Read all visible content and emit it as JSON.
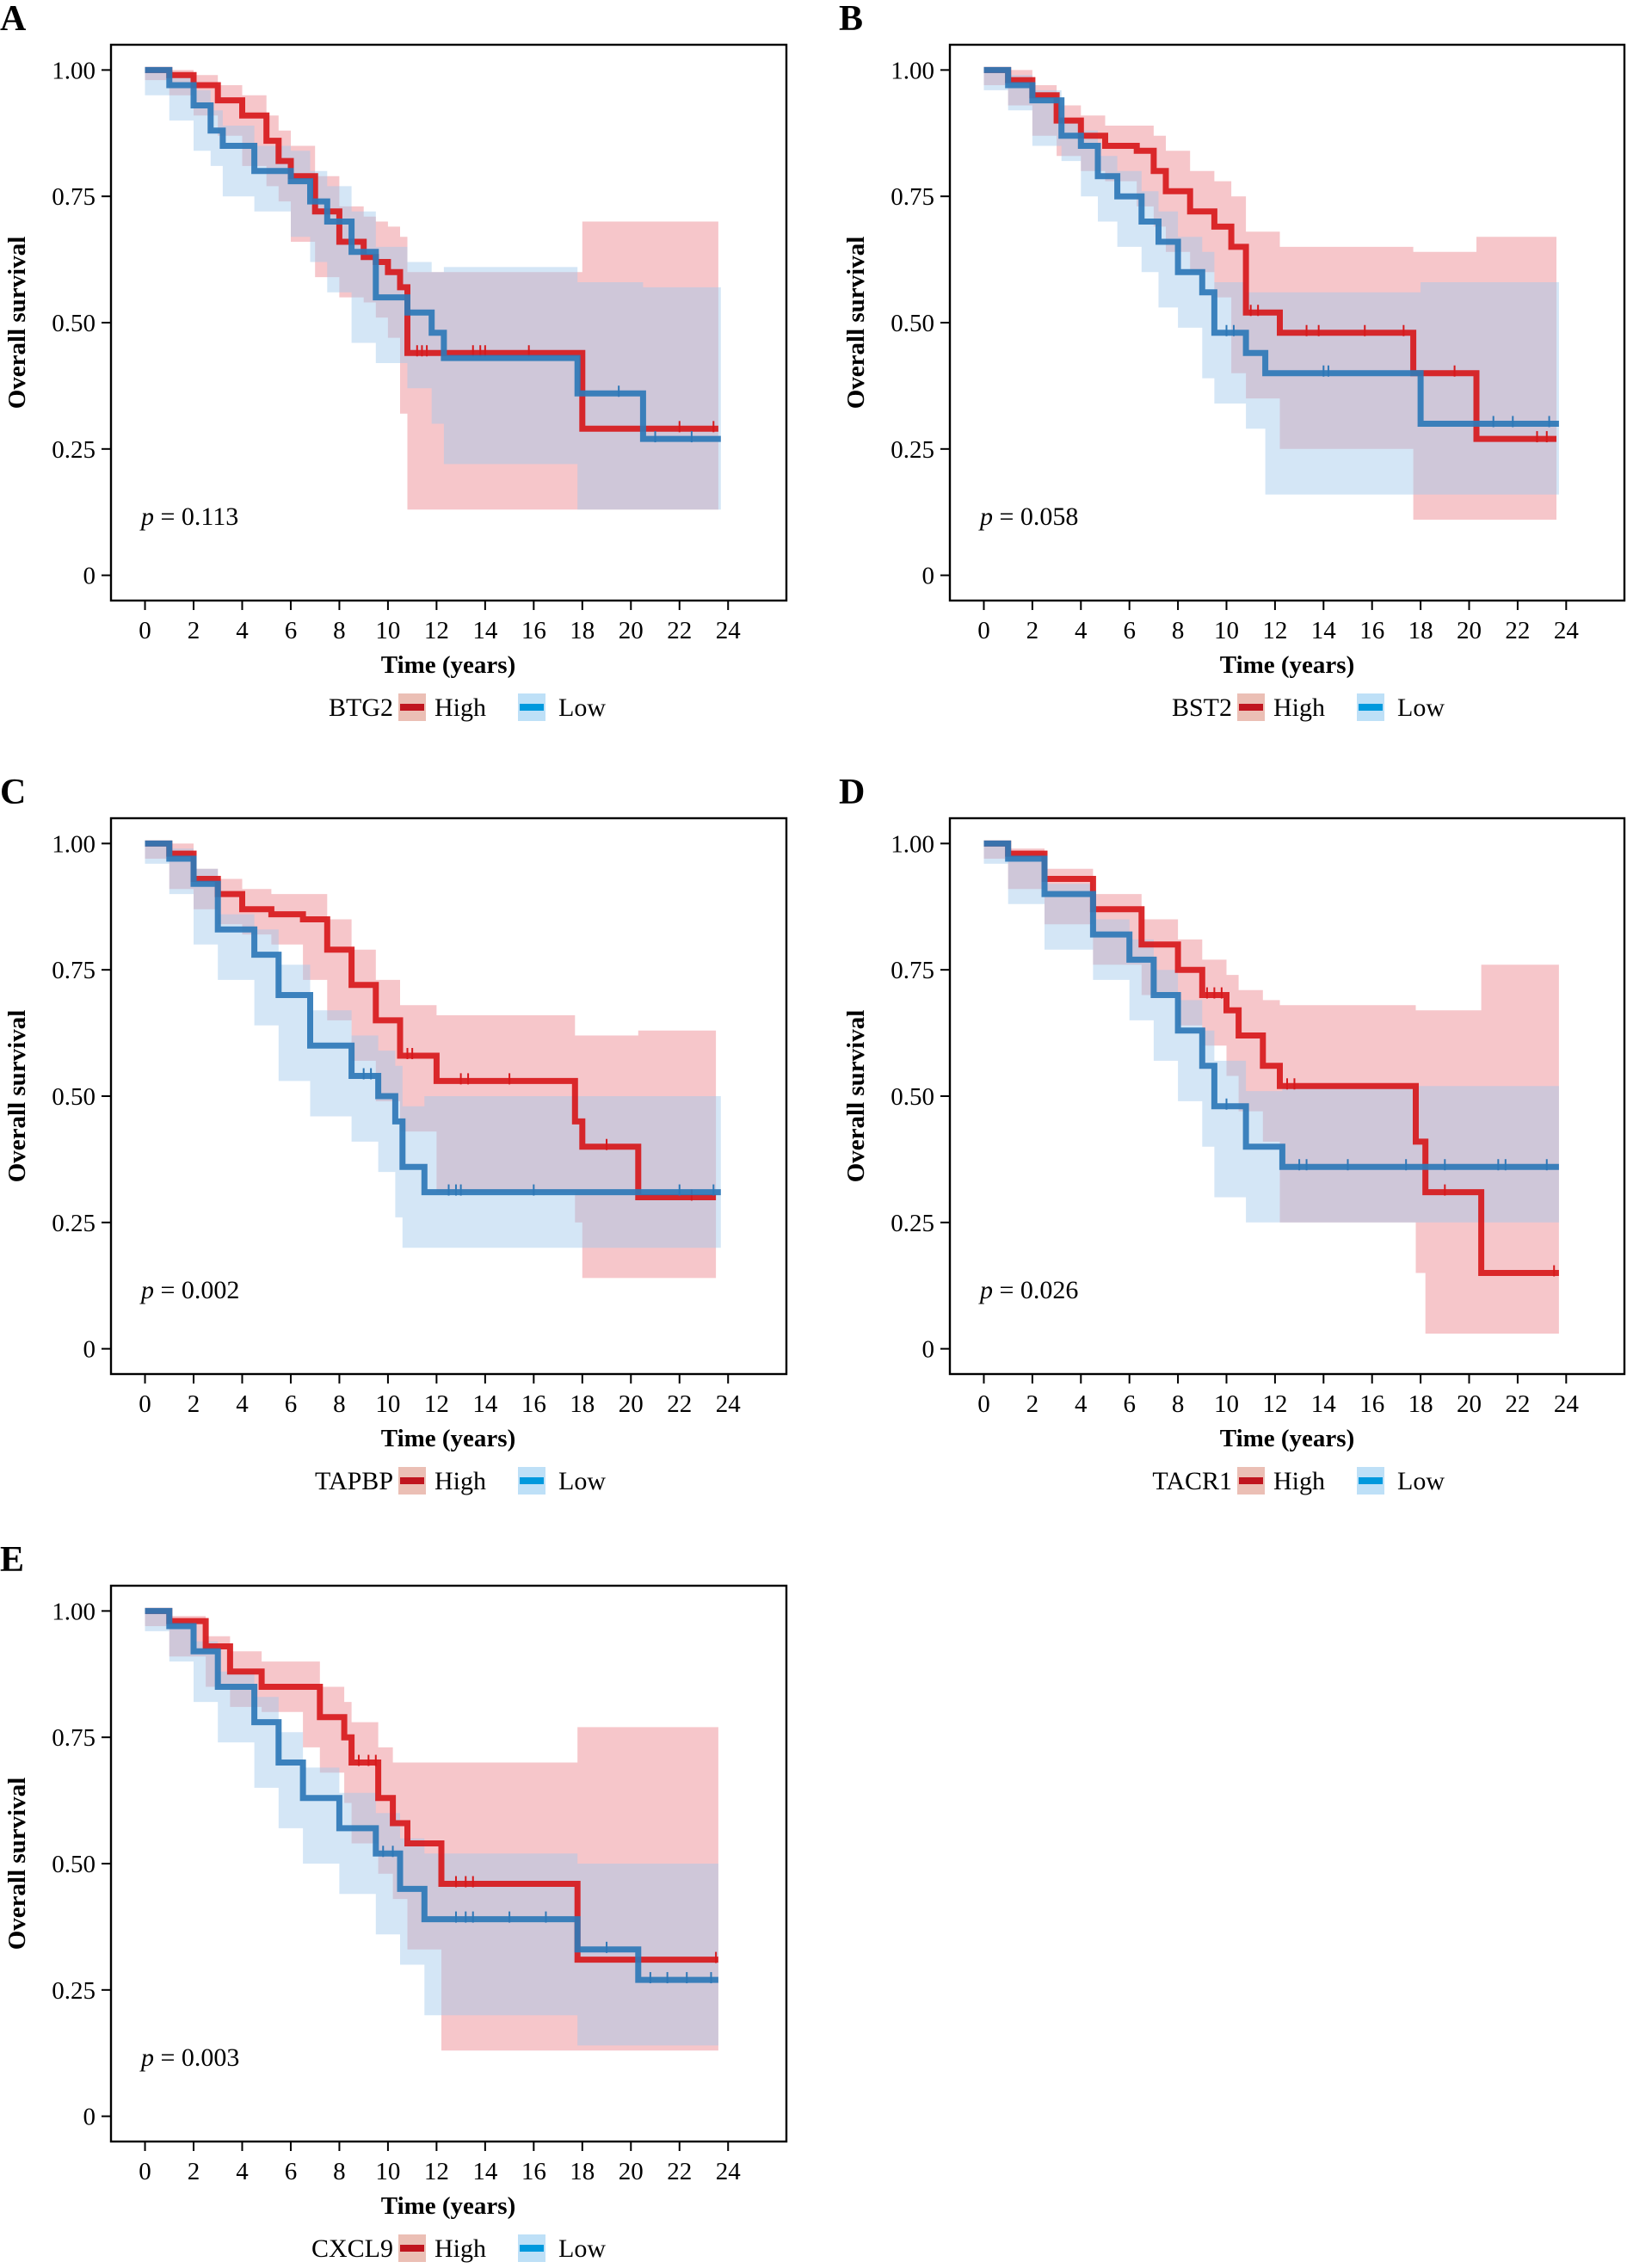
{
  "figure": {
    "colors": {
      "high_line": "#D7191C",
      "low_line": "#2E78B7",
      "high_band": "#EE8E96",
      "low_band": "#9FC8EA",
      "high_legend_line": "#C0151F",
      "low_legend_line": "#0099DD",
      "high_legend_fill": "#EBBFB5",
      "low_legend_fill": "#BEE0F7"
    }
  },
  "chart_data": [
    {
      "panel": "A",
      "type": "line",
      "title": "",
      "gene": "BTG2",
      "xlabel": "Time (years)",
      "ylabel": "Overall survival",
      "xlim": [
        -1.4,
        26.4
      ],
      "ylim": [
        -0.05,
        1.05
      ],
      "x_ticks": [
        0,
        2,
        4,
        6,
        8,
        10,
        12,
        14,
        16,
        18,
        20,
        22,
        24
      ],
      "y_ticks": [
        0,
        0.25,
        0.5,
        0.75,
        1.0
      ],
      "y_tick_labels": [
        "0",
        "0.25",
        "0.50",
        "0.75",
        "1.00"
      ],
      "grid": false,
      "legend": {
        "title": "BTG2",
        "entries": [
          "High",
          "Low"
        ],
        "position": "bottom"
      },
      "annotation": {
        "p_symbol": "p",
        "p_text": " = 0.113",
        "x": 0,
        "y": 0.12
      },
      "series": [
        {
          "name": "High",
          "x": [
            0,
            1,
            2,
            3,
            4,
            5,
            5.5,
            6,
            7,
            8,
            9,
            9.5,
            10,
            10.5,
            10.8,
            18,
            23.6
          ],
          "y": [
            1.0,
            0.99,
            0.97,
            0.94,
            0.91,
            0.86,
            0.82,
            0.79,
            0.72,
            0.66,
            0.63,
            0.62,
            0.6,
            0.57,
            0.44,
            0.29,
            0.29
          ],
          "lower": [
            1.0,
            0.98,
            0.95,
            0.91,
            0.87,
            0.81,
            0.77,
            0.74,
            0.66,
            0.59,
            0.55,
            0.54,
            0.51,
            0.47,
            0.32,
            0.13,
            0.13
          ],
          "upper": [
            1.0,
            1.0,
            0.99,
            0.97,
            0.95,
            0.91,
            0.88,
            0.85,
            0.79,
            0.73,
            0.71,
            0.7,
            0.69,
            0.67,
            0.6,
            0.7,
            0.7
          ],
          "censor_x": [
            11.2,
            11.4,
            11.6,
            13.5,
            13.8,
            14.0,
            15.8,
            22.0,
            23.4
          ]
        },
        {
          "name": "Low",
          "x": [
            0,
            1,
            2,
            2.7,
            3.2,
            4.5,
            6,
            6.8,
            7.5,
            8.5,
            9.5,
            10.8,
            11.8,
            12.3,
            17.8,
            20.5,
            23.7
          ],
          "y": [
            1.0,
            0.97,
            0.93,
            0.88,
            0.85,
            0.8,
            0.78,
            0.74,
            0.7,
            0.64,
            0.55,
            0.52,
            0.48,
            0.43,
            0.36,
            0.27,
            0.27
          ],
          "lower": [
            1.0,
            0.95,
            0.9,
            0.84,
            0.81,
            0.75,
            0.72,
            0.67,
            0.62,
            0.56,
            0.46,
            0.42,
            0.37,
            0.3,
            0.22,
            0.13,
            0.13
          ],
          "upper": [
            1.0,
            0.99,
            0.96,
            0.92,
            0.89,
            0.85,
            0.84,
            0.8,
            0.77,
            0.72,
            0.65,
            0.62,
            0.6,
            0.61,
            0.58,
            0.57,
            0.57
          ],
          "censor_x": [
            19.5,
            21.0,
            22.5
          ]
        }
      ]
    },
    {
      "panel": "B",
      "type": "line",
      "title": "",
      "gene": "BST2",
      "xlabel": "Time (years)",
      "ylabel": "Overall survival",
      "xlim": [
        -1.4,
        26.4
      ],
      "ylim": [
        -0.05,
        1.05
      ],
      "x_ticks": [
        0,
        2,
        4,
        6,
        8,
        10,
        12,
        14,
        16,
        18,
        20,
        22,
        24
      ],
      "y_ticks": [
        0,
        0.25,
        0.5,
        0.75,
        1.0
      ],
      "y_tick_labels": [
        "0",
        "0.25",
        "0.50",
        "0.75",
        "1.00"
      ],
      "grid": false,
      "legend": {
        "title": "BST2",
        "entries": [
          "High",
          "Low"
        ],
        "position": "bottom"
      },
      "annotation": {
        "p_symbol": "p",
        "p_text": " = 0.058",
        "x": 0,
        "y": 0.12
      },
      "series": [
        {
          "name": "High",
          "x": [
            0,
            1,
            2,
            3,
            4,
            5,
            6.3,
            7,
            7.5,
            8.5,
            9.5,
            10.2,
            10.8,
            12.2,
            17.7,
            20.3,
            23.6
          ],
          "y": [
            1.0,
            0.98,
            0.95,
            0.9,
            0.87,
            0.85,
            0.84,
            0.8,
            0.76,
            0.72,
            0.69,
            0.65,
            0.52,
            0.48,
            0.4,
            0.27,
            0.27
          ],
          "lower": [
            1.0,
            0.97,
            0.93,
            0.87,
            0.83,
            0.8,
            0.78,
            0.73,
            0.69,
            0.64,
            0.6,
            0.55,
            0.4,
            0.35,
            0.25,
            0.11,
            0.11
          ],
          "upper": [
            1.0,
            1.0,
            0.97,
            0.93,
            0.91,
            0.89,
            0.89,
            0.87,
            0.84,
            0.8,
            0.78,
            0.75,
            0.68,
            0.65,
            0.64,
            0.67,
            0.67
          ],
          "censor_x": [
            11.0,
            11.3,
            13.3,
            13.8,
            15.7,
            17.3,
            19.4,
            22.8,
            23.2
          ]
        },
        {
          "name": "Low",
          "x": [
            0,
            1,
            2,
            3.2,
            4,
            4.7,
            5.5,
            6.5,
            7.2,
            8,
            9,
            9.5,
            10.8,
            11.6,
            18,
            23.7
          ],
          "y": [
            1.0,
            0.97,
            0.94,
            0.87,
            0.85,
            0.79,
            0.75,
            0.7,
            0.66,
            0.6,
            0.56,
            0.48,
            0.44,
            0.4,
            0.3,
            0.3
          ],
          "lower": [
            1.0,
            0.96,
            0.92,
            0.85,
            0.82,
            0.75,
            0.7,
            0.65,
            0.6,
            0.53,
            0.49,
            0.39,
            0.34,
            0.29,
            0.16,
            0.16
          ],
          "upper": [
            1.0,
            0.99,
            0.96,
            0.9,
            0.88,
            0.83,
            0.8,
            0.76,
            0.72,
            0.67,
            0.64,
            0.58,
            0.56,
            0.56,
            0.58,
            0.58
          ],
          "censor_x": [
            10.0,
            10.3,
            14.0,
            14.2,
            21.0,
            21.8,
            23.3
          ]
        }
      ]
    },
    {
      "panel": "C",
      "type": "line",
      "title": "",
      "gene": "TAPBP",
      "xlabel": "Time (years)",
      "ylabel": "Overall survival",
      "xlim": [
        -1.4,
        26.4
      ],
      "ylim": [
        -0.05,
        1.05
      ],
      "x_ticks": [
        0,
        2,
        4,
        6,
        8,
        10,
        12,
        14,
        16,
        18,
        20,
        22,
        24
      ],
      "y_ticks": [
        0,
        0.25,
        0.5,
        0.75,
        1.0
      ],
      "y_tick_labels": [
        "0",
        "0.25",
        "0.50",
        "0.75",
        "1.00"
      ],
      "grid": false,
      "legend": {
        "title": "TAPBP",
        "entries": [
          "High",
          "Low"
        ],
        "position": "bottom"
      },
      "annotation": {
        "p_symbol": "p",
        "p_text": " = 0.002",
        "x": 0,
        "y": 0.12
      },
      "series": [
        {
          "name": "High",
          "x": [
            0,
            1,
            2,
            3,
            4,
            5.2,
            6.5,
            7.5,
            8.5,
            9.5,
            10.5,
            12,
            17.7,
            18,
            20.3,
            23.5
          ],
          "y": [
            1.0,
            0.98,
            0.93,
            0.9,
            0.87,
            0.86,
            0.85,
            0.79,
            0.72,
            0.65,
            0.58,
            0.53,
            0.45,
            0.4,
            0.3,
            0.3
          ],
          "lower": [
            1.0,
            0.97,
            0.91,
            0.87,
            0.84,
            0.82,
            0.8,
            0.73,
            0.65,
            0.57,
            0.49,
            0.43,
            0.31,
            0.25,
            0.14,
            0.14
          ],
          "upper": [
            1.0,
            1.0,
            0.95,
            0.93,
            0.91,
            0.9,
            0.9,
            0.85,
            0.79,
            0.73,
            0.68,
            0.66,
            0.62,
            0.62,
            0.63,
            0.63
          ],
          "censor_x": [
            10.8,
            11.0,
            13.0,
            13.3,
            15.0,
            19.0,
            22.5
          ]
        },
        {
          "name": "Low",
          "x": [
            0,
            1,
            2,
            3,
            4.5,
            5.5,
            6.8,
            8.5,
            9.6,
            10.3,
            10.6,
            11.5,
            23.7
          ],
          "y": [
            1.0,
            0.97,
            0.92,
            0.83,
            0.78,
            0.7,
            0.6,
            0.54,
            0.5,
            0.45,
            0.36,
            0.31,
            0.31
          ],
          "lower": [
            1.0,
            0.96,
            0.9,
            0.8,
            0.73,
            0.64,
            0.53,
            0.46,
            0.41,
            0.35,
            0.26,
            0.2,
            0.2
          ],
          "upper": [
            1.0,
            0.99,
            0.95,
            0.86,
            0.83,
            0.76,
            0.67,
            0.62,
            0.59,
            0.56,
            0.48,
            0.5,
            0.5
          ],
          "censor_x": [
            9.0,
            9.3,
            12.5,
            12.8,
            13.0,
            16.0,
            22.0,
            23.4
          ]
        }
      ]
    },
    {
      "panel": "D",
      "type": "line",
      "title": "",
      "gene": "TACR1",
      "xlabel": "Time (years)",
      "ylabel": "Overall survival",
      "xlim": [
        -1.4,
        26.4
      ],
      "ylim": [
        -0.05,
        1.05
      ],
      "x_ticks": [
        0,
        2,
        4,
        6,
        8,
        10,
        12,
        14,
        16,
        18,
        20,
        22,
        24
      ],
      "y_ticks": [
        0,
        0.25,
        0.5,
        0.75,
        1.0
      ],
      "y_tick_labels": [
        "0",
        "0.25",
        "0.50",
        "0.75",
        "1.00"
      ],
      "grid": false,
      "legend": {
        "title": "TACR1",
        "entries": [
          "High",
          "Low"
        ],
        "position": "bottom"
      },
      "annotation": {
        "p_symbol": "p",
        "p_text": " = 0.026",
        "x": 0,
        "y": 0.12
      },
      "series": [
        {
          "name": "High",
          "x": [
            0,
            1,
            2.5,
            4.5,
            6.5,
            8,
            9,
            10,
            10.5,
            11.5,
            12.2,
            17.8,
            18.2,
            20.5,
            23.7
          ],
          "y": [
            1.0,
            0.98,
            0.93,
            0.87,
            0.8,
            0.75,
            0.7,
            0.67,
            0.62,
            0.56,
            0.52,
            0.41,
            0.31,
            0.15,
            0.15
          ],
          "lower": [
            1.0,
            0.97,
            0.91,
            0.84,
            0.76,
            0.7,
            0.64,
            0.6,
            0.54,
            0.47,
            0.41,
            0.25,
            0.15,
            0.03,
            0.03
          ],
          "upper": [
            1.0,
            0.99,
            0.95,
            0.9,
            0.85,
            0.81,
            0.77,
            0.74,
            0.71,
            0.69,
            0.68,
            0.67,
            0.67,
            0.76,
            0.76
          ],
          "censor_x": [
            9.2,
            9.5,
            9.8,
            12.5,
            12.8,
            19.0,
            23.5
          ]
        },
        {
          "name": "Low",
          "x": [
            0,
            1,
            2.5,
            4.5,
            6,
            7,
            8,
            9,
            9.5,
            10.8,
            12.3,
            23.7
          ],
          "y": [
            1.0,
            0.97,
            0.9,
            0.82,
            0.77,
            0.7,
            0.63,
            0.56,
            0.48,
            0.4,
            0.36,
            0.36
          ],
          "lower": [
            1.0,
            0.96,
            0.88,
            0.79,
            0.73,
            0.65,
            0.57,
            0.49,
            0.4,
            0.3,
            0.25,
            0.25
          ],
          "upper": [
            1.0,
            0.98,
            0.92,
            0.85,
            0.81,
            0.75,
            0.69,
            0.63,
            0.57,
            0.51,
            0.52,
            0.52
          ],
          "censor_x": [
            10.0,
            13.0,
            13.3,
            15.0,
            17.4,
            19.0,
            21.2,
            21.5,
            23.2
          ]
        }
      ]
    },
    {
      "panel": "E",
      "type": "line",
      "title": "",
      "gene": "CXCL9",
      "xlabel": "Time (years)",
      "ylabel": "Overall survival",
      "xlim": [
        -1.4,
        26.4
      ],
      "ylim": [
        -0.05,
        1.05
      ],
      "x_ticks": [
        0,
        2,
        4,
        6,
        8,
        10,
        12,
        14,
        16,
        18,
        20,
        22,
        24
      ],
      "y_ticks": [
        0,
        0.25,
        0.5,
        0.75,
        1.0
      ],
      "y_tick_labels": [
        "0",
        "0.25",
        "0.50",
        "0.75",
        "1.00"
      ],
      "grid": false,
      "legend": {
        "title": "CXCL9",
        "entries": [
          "High",
          "Low"
        ],
        "position": "bottom"
      },
      "annotation": {
        "p_symbol": "p",
        "p_text": " = 0.003",
        "x": 0,
        "y": 0.12
      },
      "series": [
        {
          "name": "High",
          "x": [
            0,
            1,
            2.5,
            3.5,
            4.8,
            6.5,
            7.2,
            8.2,
            8.5,
            9.6,
            10.2,
            10.8,
            12.2,
            17.8,
            23.6
          ],
          "y": [
            1.0,
            0.98,
            0.93,
            0.88,
            0.85,
            0.85,
            0.79,
            0.75,
            0.7,
            0.63,
            0.58,
            0.54,
            0.46,
            0.31,
            0.31
          ],
          "lower": [
            1.0,
            0.97,
            0.91,
            0.85,
            0.81,
            0.8,
            0.73,
            0.68,
            0.62,
            0.54,
            0.48,
            0.43,
            0.33,
            0.13,
            0.13
          ],
          "upper": [
            1.0,
            0.99,
            0.95,
            0.92,
            0.9,
            0.9,
            0.85,
            0.82,
            0.78,
            0.73,
            0.7,
            0.7,
            0.7,
            0.77,
            0.77
          ],
          "censor_x": [
            8.8,
            9.2,
            9.5,
            12.8,
            13.2,
            13.5,
            23.5
          ]
        },
        {
          "name": "Low",
          "x": [
            0,
            1,
            2,
            3,
            4.5,
            5.5,
            6.5,
            8,
            9.5,
            10.5,
            11.5,
            17.8,
            20.3,
            23.6
          ],
          "y": [
            1.0,
            0.97,
            0.92,
            0.85,
            0.78,
            0.7,
            0.63,
            0.57,
            0.52,
            0.45,
            0.39,
            0.33,
            0.27,
            0.27
          ],
          "lower": [
            1.0,
            0.96,
            0.9,
            0.82,
            0.74,
            0.65,
            0.57,
            0.5,
            0.44,
            0.36,
            0.3,
            0.2,
            0.14,
            0.14
          ],
          "upper": [
            1.0,
            0.98,
            0.94,
            0.88,
            0.83,
            0.76,
            0.69,
            0.64,
            0.6,
            0.55,
            0.52,
            0.5,
            0.5,
            0.5
          ],
          "censor_x": [
            9.8,
            10.2,
            12.8,
            13.2,
            13.5,
            15.0,
            16.5,
            19.0,
            20.8,
            21.5,
            22.3,
            23.3
          ]
        }
      ]
    }
  ]
}
